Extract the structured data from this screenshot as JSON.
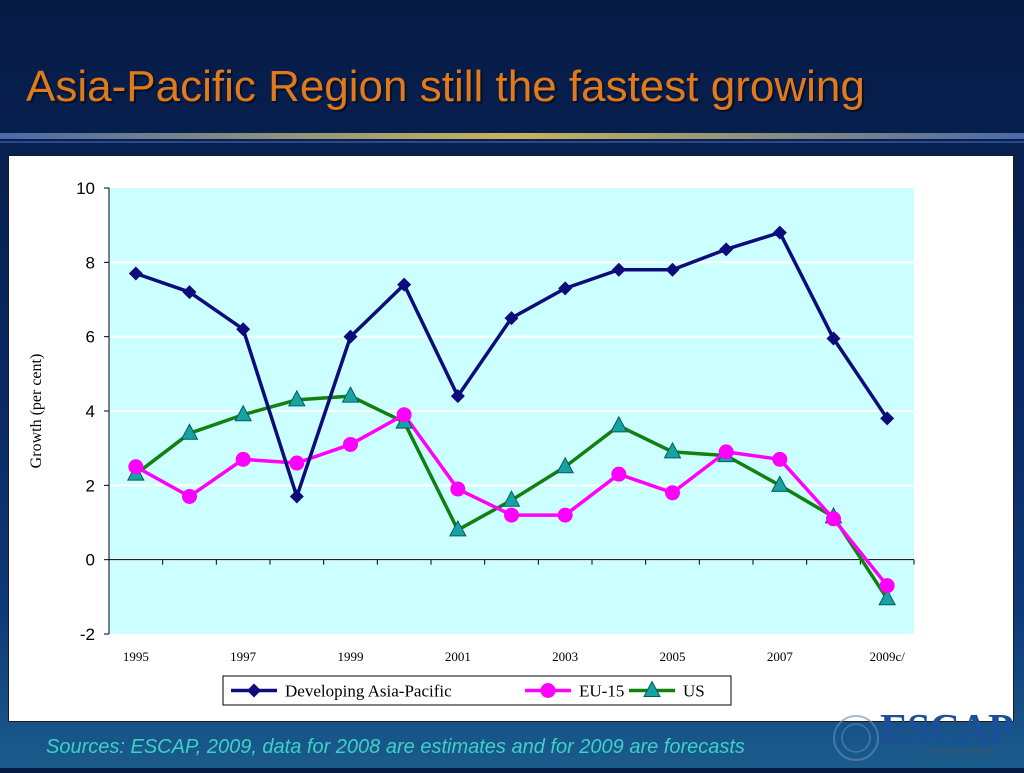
{
  "slide": {
    "title": "Asia-Pacific Region still the fastest growing",
    "sources": "Sources: ESCAP, 2009, data for 2008 are estimates and for 2009 are forecasts",
    "logo_text": "ESCAP",
    "logo_subtext": "for Asia and the Pacific"
  },
  "colors": {
    "title": "#e07a1a",
    "sources": "#3fd0c8",
    "plot_background": "#ccffff",
    "developing_asia_pacific": "#0c0c7a",
    "eu15": "#ff00ff",
    "us": "#118011",
    "us_marker": "#16a3a3"
  },
  "chart_data": {
    "type": "line",
    "xlabel": "",
    "ylabel": "Growth (per cent)",
    "ylim": [
      -2,
      10
    ],
    "yticks": [
      -2,
      0,
      2,
      4,
      6,
      8,
      10
    ],
    "x": [
      "1995",
      "1996",
      "1997",
      "1998",
      "1999",
      "2000",
      "2001",
      "2002",
      "2003",
      "2004",
      "2005",
      "2006",
      "2007",
      "2008",
      "2009c/"
    ],
    "xtick_labels": [
      "1995",
      "1997",
      "1999",
      "2001",
      "2003",
      "2005",
      "2007",
      "2009c/"
    ],
    "grid": "horizontal",
    "legend_position": "bottom",
    "series": [
      {
        "name": "Developing Asia-Pacific",
        "marker": "diamond",
        "values": [
          7.7,
          7.2,
          6.2,
          1.7,
          6.0,
          7.4,
          4.4,
          6.5,
          7.3,
          7.8,
          7.8,
          8.35,
          8.8,
          5.95,
          3.8
        ]
      },
      {
        "name": "EU-15",
        "marker": "circle",
        "values": [
          2.5,
          1.7,
          2.7,
          2.6,
          3.1,
          3.9,
          1.9,
          1.2,
          1.2,
          2.3,
          1.8,
          2.9,
          2.7,
          1.1,
          -0.7
        ]
      },
      {
        "name": "US",
        "marker": "triangle",
        "values": [
          2.3,
          3.4,
          3.9,
          4.3,
          4.4,
          3.7,
          0.8,
          1.6,
          2.5,
          3.6,
          2.9,
          2.8,
          2.0,
          1.15,
          -1.05
        ]
      }
    ]
  }
}
